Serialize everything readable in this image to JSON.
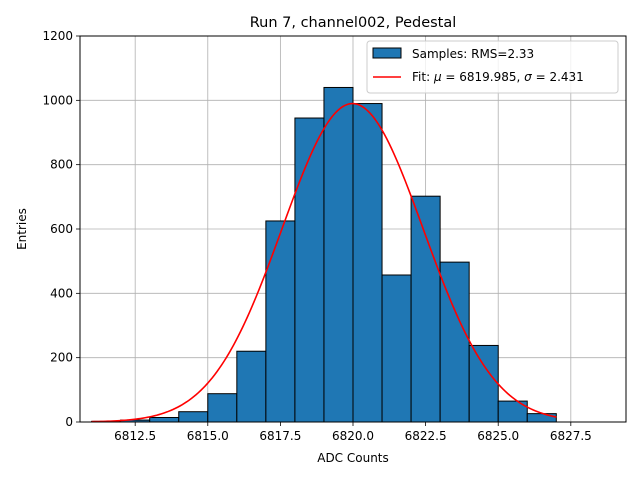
{
  "chart_data": {
    "type": "bar",
    "title": "Run 7, channel002, Pedestal",
    "xlabel": "ADC Counts",
    "ylabel": "Entries",
    "xlim": [
      6810.6,
      6829.4
    ],
    "ylim": [
      0,
      1200
    ],
    "grid": true,
    "legend_position": "top-right",
    "x_ticks": [
      6812.5,
      6815.0,
      6817.5,
      6820.0,
      6822.5,
      6825.0,
      6827.5
    ],
    "x_tick_labels": [
      "6812.5",
      "6815.0",
      "6817.5",
      "6820.0",
      "6822.5",
      "6825.0",
      "6827.5"
    ],
    "y_ticks": [
      0,
      200,
      400,
      600,
      800,
      1000,
      1200
    ],
    "y_tick_labels": [
      "0",
      "200",
      "400",
      "600",
      "800",
      "1000",
      "1200"
    ],
    "histogram": {
      "name": "Samples: RMS=2.33",
      "color": "#1f77b4",
      "edge_color": "#000000",
      "bin_edges": [
        6811,
        6812,
        6813,
        6814,
        6815,
        6816,
        6817,
        6818,
        6819,
        6820,
        6821,
        6822,
        6823,
        6824,
        6825,
        6826,
        6827
      ],
      "counts": [
        2,
        6,
        14,
        32,
        88,
        220,
        625,
        945,
        1040,
        990,
        457,
        702,
        497,
        238,
        65,
        26
      ]
    },
    "fit": {
      "name_prefix": "Fit: ",
      "mu_symbol": "μ",
      "mu_text": " = 6819.985, ",
      "sigma_symbol": "σ",
      "sigma_text": " = 2.431",
      "color": "#ff0000",
      "mu": 6819.985,
      "sigma": 2.431,
      "amplitude": 990,
      "x_range": [
        6811,
        6827
      ]
    }
  }
}
